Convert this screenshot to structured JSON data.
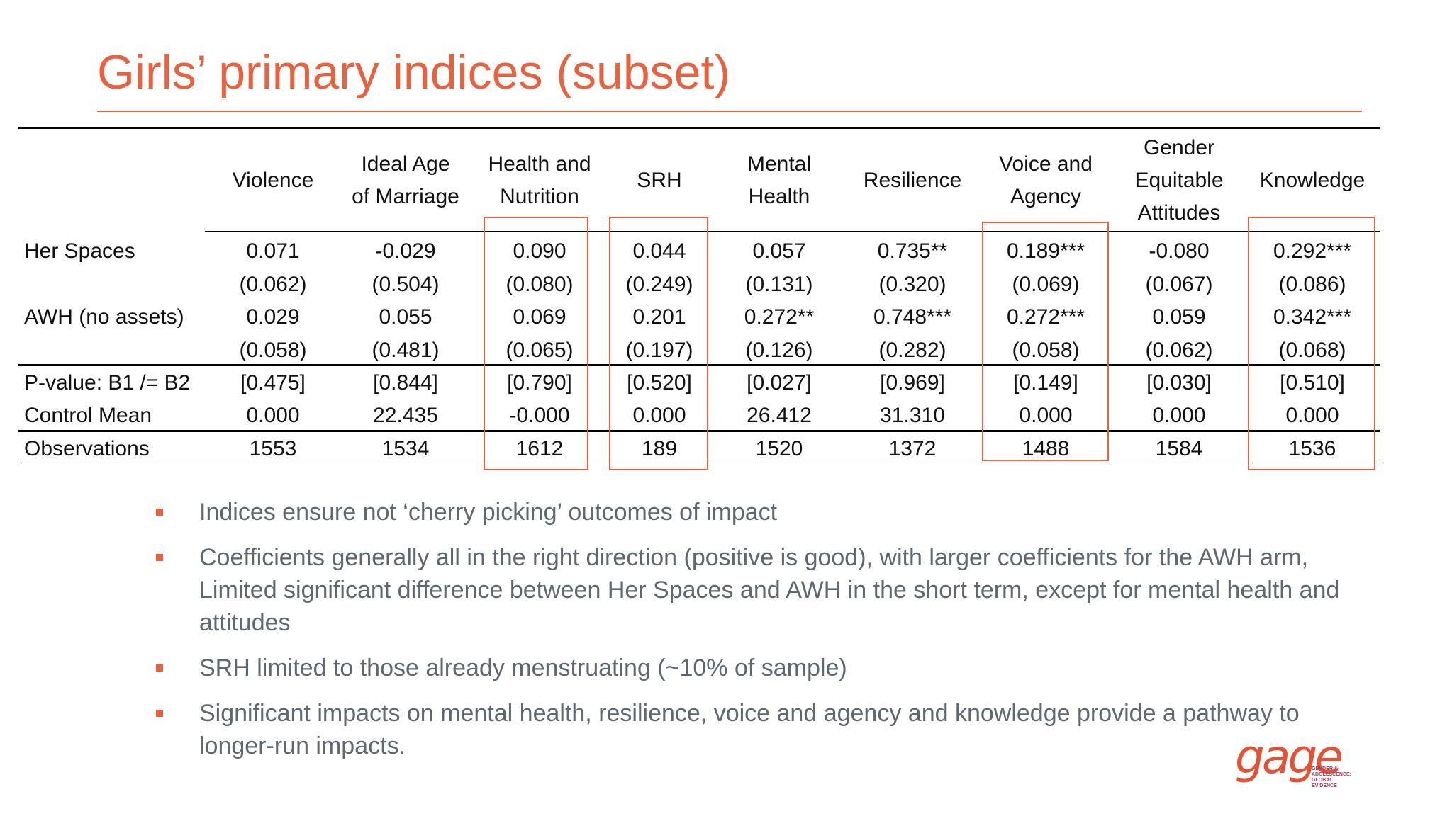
{
  "title": "Girls’ primary indices (subset)",
  "table": {
    "columns": [
      {
        "name": "Violence",
        "lines": [
          "Violence"
        ]
      },
      {
        "name": "Ideal Age of Marriage",
        "lines": [
          "Ideal Age",
          "of Marriage"
        ]
      },
      {
        "name": "Health and Nutrition",
        "lines": [
          "Health and",
          "Nutrition"
        ]
      },
      {
        "name": "SRH",
        "lines": [
          "SRH"
        ]
      },
      {
        "name": "Mental Health",
        "lines": [
          "Mental",
          "Health"
        ]
      },
      {
        "name": "Resilience",
        "lines": [
          "Resilience"
        ]
      },
      {
        "name": "Voice and Agency",
        "lines": [
          "Voice and",
          "Agency"
        ]
      },
      {
        "name": "Gender Equitable Attitudes",
        "lines": [
          "Gender",
          "Equitable",
          "Attitudes"
        ]
      },
      {
        "name": "Knowledge",
        "lines": [
          "Knowledge"
        ]
      }
    ],
    "rows": [
      {
        "label": "Her Spaces",
        "values": [
          "0.071",
          "-0.029",
          "0.090",
          "0.044",
          "0.057",
          "0.735**",
          "0.189***",
          "-0.080",
          "0.292***"
        ]
      },
      {
        "label": "",
        "values": [
          "(0.062)",
          "(0.504)",
          "(0.080)",
          "(0.249)",
          "(0.131)",
          "(0.320)",
          "(0.069)",
          "(0.067)",
          "(0.086)"
        ]
      },
      {
        "label": "AWH (no assets)",
        "values": [
          "0.029",
          "0.055",
          "0.069",
          "0.201",
          "0.272**",
          "0.748***",
          "0.272***",
          "0.059",
          "0.342***"
        ]
      },
      {
        "label": "",
        "values": [
          "(0.058)",
          "(0.481)",
          "(0.065)",
          "(0.197)",
          "(0.126)",
          "(0.282)",
          "(0.058)",
          "(0.062)",
          "(0.068)"
        ]
      },
      {
        "label": "P-value: B1 /= B2",
        "values": [
          "[0.475]",
          "[0.844]",
          "[0.790]",
          "[0.520]",
          "[0.027]",
          "[0.969]",
          "[0.149]",
          "[0.030]",
          "[0.510]"
        ]
      },
      {
        "label": "Control Mean",
        "values": [
          "0.000",
          "22.435",
          "-0.000",
          "0.000",
          "26.412",
          "31.310",
          "0.000",
          "0.000",
          "0.000"
        ]
      },
      {
        "label": "Observations",
        "values": [
          "1553",
          "1534",
          "1612",
          "189",
          "1520",
          "1372",
          "1488",
          "1584",
          "1536"
        ]
      }
    ],
    "highlighted_columns": [
      "Health and Nutrition",
      "SRH",
      "Voice and Agency",
      "Knowledge"
    ]
  },
  "bullets": [
    "Indices ensure not ‘cherry picking’ outcomes of impact",
    "Coefficients generally all in the right direction (positive is good), with larger coefficients for the AWH arm, Limited significant difference between Her Spaces and AWH in the short term, except for mental health and attitudes",
    "SRH limited to those already menstruating (~10% of sample)",
    "Significant impacts on mental health, resilience, voice and agency and knowledge provide a pathway to longer-run impacts."
  ],
  "logo": {
    "word": "gage",
    "tagline": "GENDER &\nADOLESCENCE:\nGLOBAL\nEVIDENCE"
  },
  "colors": {
    "accent": "#e8623f",
    "body_text": "#5f6770",
    "table_text": "#111111"
  }
}
